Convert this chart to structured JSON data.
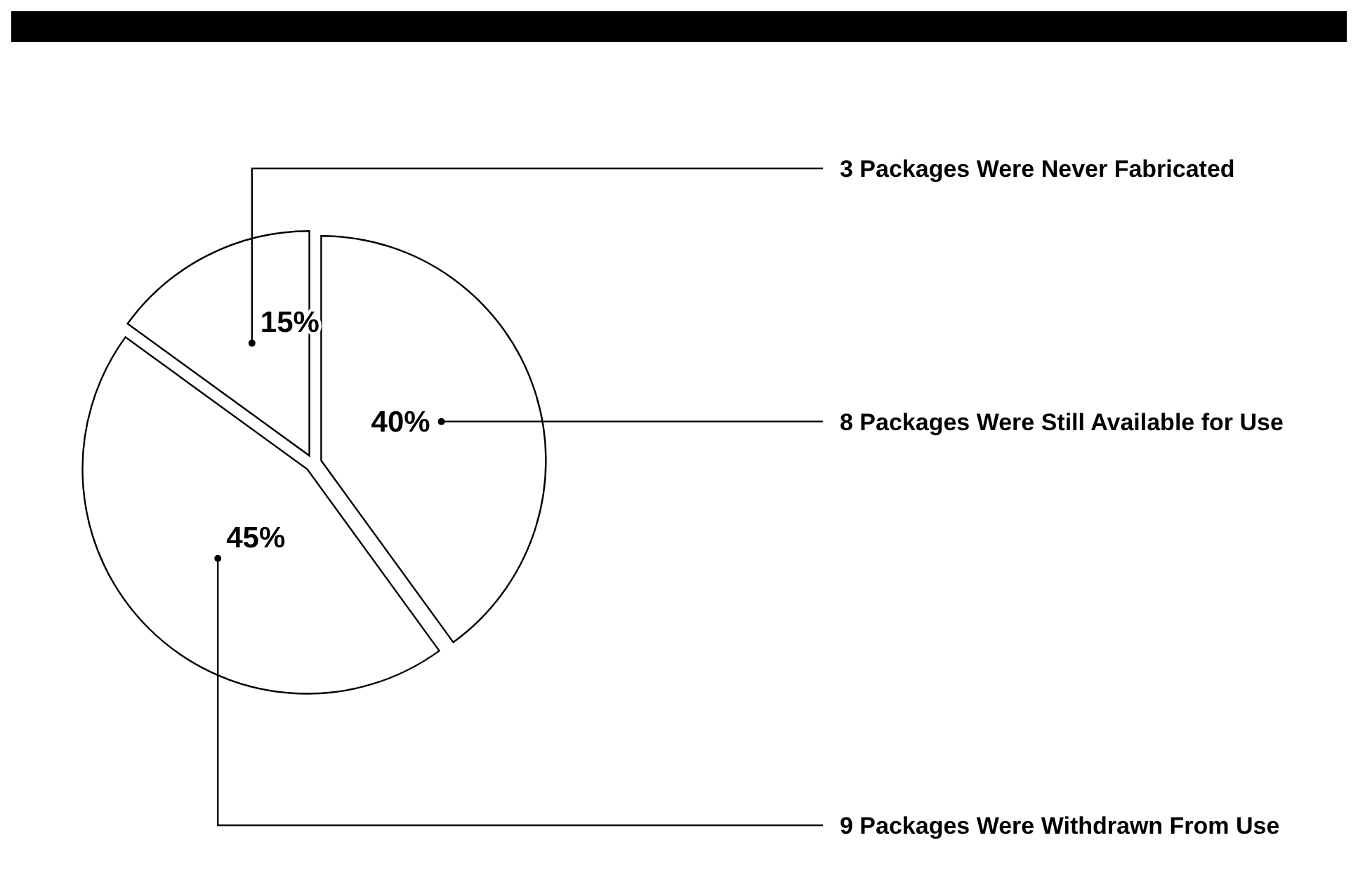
{
  "chart_data": {
    "type": "pie",
    "categories": [
      "8 Packages Were Still Available for Use",
      "9 Packages Were Withdrawn From Use",
      "3 Packages Were Never Fabricated"
    ],
    "values": [
      40,
      45,
      15
    ],
    "colors": [
      "#ffffff",
      "#ffffff",
      "#ffffff"
    ],
    "value_labels": [
      "40%",
      "45%",
      "15%"
    ]
  }
}
